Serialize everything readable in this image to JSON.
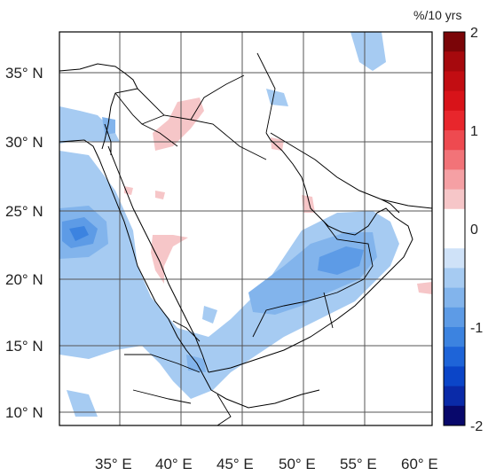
{
  "colorbar": {
    "unit": "%/10 yrs",
    "ticks": [
      "2",
      "1",
      "0",
      "-1",
      "-2"
    ],
    "tick_values": [
      2,
      1,
      0,
      -1,
      -2
    ],
    "range": [
      -2,
      2
    ],
    "colors": [
      "#08086b",
      "#0a2aa8",
      "#0b45c8",
      "#1e64d8",
      "#3c83e0",
      "#5d9be6",
      "#82b4ec",
      "#a6cbf2",
      "#cfe2f8",
      "#ffffff",
      "#ffffff",
      "#f6c6c8",
      "#f5a0a4",
      "#f27378",
      "#ee4a50",
      "#e8262c",
      "#d81319",
      "#c20d12",
      "#a6090d",
      "#7b0508"
    ]
  },
  "map": {
    "lat_labels": [
      "35° N",
      "30° N",
      "25° N",
      "20° N",
      "15° N",
      "10° N"
    ],
    "lat_values": [
      35,
      30,
      25,
      20,
      15,
      10
    ],
    "lon_labels": [
      "35° E",
      "40° E",
      "45° E",
      "50° E",
      "55° E",
      "60° E"
    ],
    "lon_values": [
      35,
      40,
      45,
      50,
      55,
      60
    ],
    "lon_range": [
      30,
      60
    ],
    "lat_range": [
      9,
      37
    ]
  }
}
